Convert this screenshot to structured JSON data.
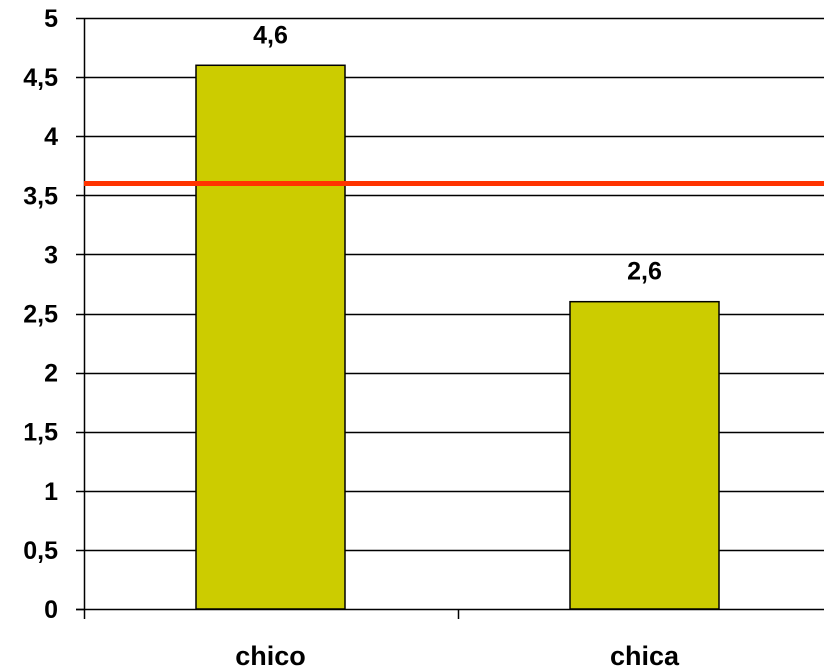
{
  "chart_data": {
    "type": "bar",
    "title": "",
    "xlabel": "",
    "ylabel": "",
    "categories": [
      "chico",
      "chica"
    ],
    "values": [
      4.6,
      2.6
    ],
    "data_labels": [
      "4,6",
      "2,6"
    ],
    "ylim": [
      0,
      5
    ],
    "yticks": [
      0,
      0.5,
      1,
      1.5,
      2,
      2.5,
      3,
      3.5,
      4,
      4.5,
      5
    ],
    "ytick_labels": [
      "0",
      "0,5",
      "1",
      "1,5",
      "2",
      "2,5",
      "3",
      "3,5",
      "4",
      "4,5",
      "5"
    ],
    "reference_line": {
      "value": 3.6
    },
    "grid": true,
    "legend": "none",
    "colors": {
      "bar_fill": "#cccc00",
      "bar_stroke": "#000000",
      "reference_line": "#ff3300",
      "gridline": "#000000"
    }
  }
}
